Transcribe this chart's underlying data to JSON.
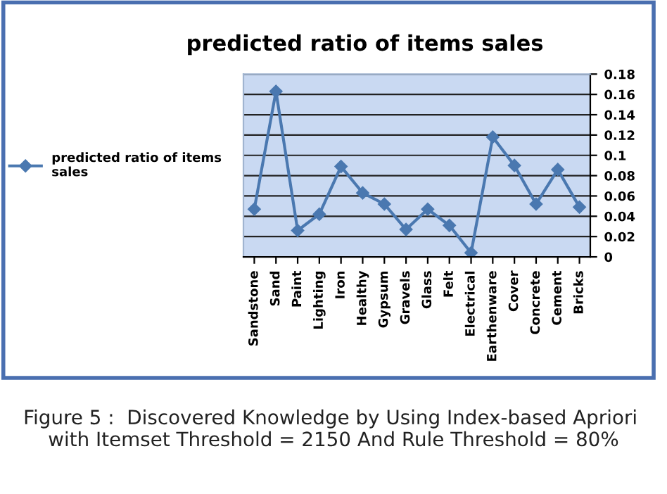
{
  "chart_data": {
    "type": "line",
    "title": "predicted ratio of items sales",
    "categories": [
      "Sandstone",
      "Sand",
      "Paint",
      "Lighting",
      "Iron",
      "Healthy",
      "Gypsum",
      "Gravels",
      "Glass",
      "Felt",
      "Electrical",
      "Earthenware",
      "Cover",
      "Concrete",
      "Cement",
      "Bricks"
    ],
    "series": [
      {
        "name": "predicted ratio of items sales",
        "color": "#4a78b0",
        "values": [
          0.047,
          0.163,
          0.026,
          0.042,
          0.089,
          0.063,
          0.052,
          0.027,
          0.047,
          0.031,
          0.004,
          0.118,
          0.09,
          0.052,
          0.086,
          0.049
        ]
      }
    ],
    "ylim": [
      0,
      0.18
    ],
    "yticks": [
      0,
      0.02,
      0.04,
      0.06,
      0.08,
      0.1,
      0.12,
      0.14,
      0.16,
      0.18
    ],
    "grid": "y",
    "legend": "left",
    "marker": "diamond",
    "line_style": "solid",
    "annotations": [
      "Figure 5 :  Discovered Knowledge by Using Index-based Apriori  with Itemset Threshold = 2150 And Rule Threshold = 80%"
    ]
  }
}
